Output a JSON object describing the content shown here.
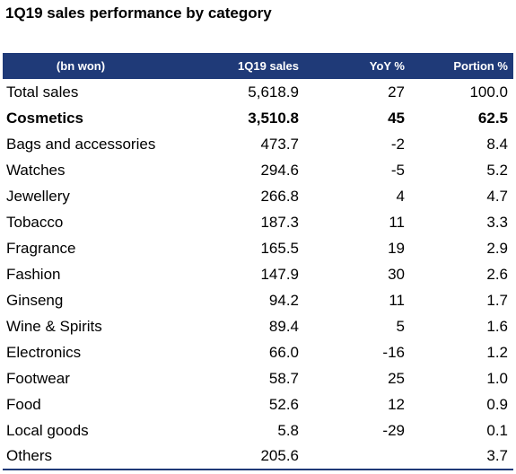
{
  "title": "1Q19 sales performance by category",
  "table": {
    "headers": [
      "(bn won)",
      "1Q19 sales",
      "YoY %",
      "Portion %"
    ],
    "rows": [
      {
        "category": "Total sales",
        "sales": "5,618.9",
        "yoy": "27",
        "portion": "100.0",
        "bold": false
      },
      {
        "category": "Cosmetics",
        "sales": "3,510.8",
        "yoy": "45",
        "portion": "62.5",
        "bold": true
      },
      {
        "category": "Bags and accessories",
        "sales": "473.7",
        "yoy": "-2",
        "portion": "8.4",
        "bold": false
      },
      {
        "category": "Watches",
        "sales": "294.6",
        "yoy": "-5",
        "portion": "5.2",
        "bold": false
      },
      {
        "category": "Jewellery",
        "sales": "266.8",
        "yoy": "4",
        "portion": "4.7",
        "bold": false
      },
      {
        "category": "Tobacco",
        "sales": "187.3",
        "yoy": "11",
        "portion": "3.3",
        "bold": false
      },
      {
        "category": "Fragrance",
        "sales": "165.5",
        "yoy": "19",
        "portion": "2.9",
        "bold": false
      },
      {
        "category": "Fashion",
        "sales": "147.9",
        "yoy": "30",
        "portion": "2.6",
        "bold": false
      },
      {
        "category": "Ginseng",
        "sales": "94.2",
        "yoy": "11",
        "portion": "1.7",
        "bold": false
      },
      {
        "category": "Wine & Spirits",
        "sales": "89.4",
        "yoy": "5",
        "portion": "1.6",
        "bold": false
      },
      {
        "category": "Electronics",
        "sales": "66.0",
        "yoy": "-16",
        "portion": "1.2",
        "bold": false
      },
      {
        "category": "Footwear",
        "sales": "58.7",
        "yoy": "25",
        "portion": "1.0",
        "bold": false
      },
      {
        "category": "Food",
        "sales": "52.6",
        "yoy": "12",
        "portion": "0.9",
        "bold": false
      },
      {
        "category": "Local goods",
        "sales": "5.8",
        "yoy": "-29",
        "portion": "0.1",
        "bold": false
      },
      {
        "category": "Others",
        "sales": "205.6",
        "yoy": "",
        "portion": "3.7",
        "bold": false
      }
    ]
  },
  "colors": {
    "header_bg": "#1f3a78",
    "header_text": "#ffffff"
  }
}
